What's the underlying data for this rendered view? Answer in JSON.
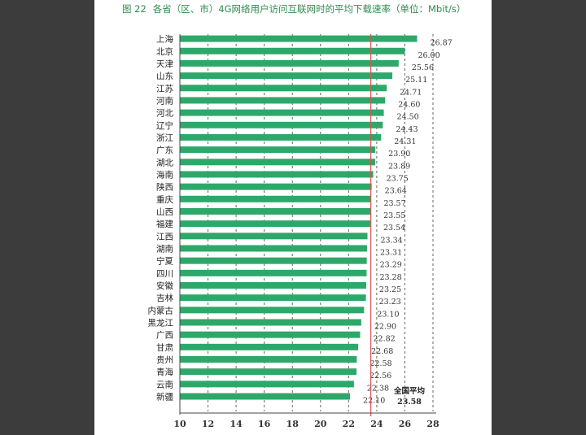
{
  "figure": {
    "number": "图 22",
    "caption": "各省（区、市）4G网络用户访问互联网时的平均下载速率（单位：Mbit/s）"
  },
  "average_note": {
    "label": "全国平均",
    "value": "23.58"
  },
  "colors": {
    "bar": "#2ea86a",
    "average_line": "#d9534f",
    "title": "#2e8b4e"
  },
  "chart_data": {
    "type": "bar",
    "orientation": "horizontal",
    "categories": [
      "上海",
      "北京",
      "天津",
      "山东",
      "江苏",
      "河南",
      "河北",
      "辽宁",
      "浙江",
      "广东",
      "湖北",
      "海南",
      "陕西",
      "重庆",
      "山西",
      "福建",
      "江西",
      "湖南",
      "宁夏",
      "四川",
      "安徽",
      "吉林",
      "内蒙古",
      "黑龙江",
      "广西",
      "甘肃",
      "贵州",
      "青海",
      "云南",
      "新疆"
    ],
    "values": [
      26.87,
      26.0,
      25.56,
      25.11,
      24.71,
      24.6,
      24.5,
      24.43,
      24.31,
      23.9,
      23.89,
      23.75,
      23.64,
      23.57,
      23.55,
      23.54,
      23.34,
      23.31,
      23.29,
      23.28,
      23.25,
      23.23,
      23.1,
      22.9,
      22.82,
      22.68,
      22.58,
      22.56,
      22.38,
      22.1
    ],
    "value_labels": [
      "26.87",
      "26.00",
      "25.56",
      "25.11",
      "24.71",
      "24.60",
      "24.50",
      "24.43",
      "24.31",
      "23.90",
      "23.89",
      "23.75",
      "23.64",
      "23.57",
      "23.55",
      "23.54",
      "23.34",
      "23.31",
      "23.29",
      "23.28",
      "23.25",
      "23.23",
      "23.10",
      "22.90",
      "22.82",
      "22.68",
      "22.58",
      "22.56",
      "22.38",
      "22.10"
    ],
    "xlim": [
      10,
      28
    ],
    "xticks": [
      10,
      12,
      14,
      16,
      18,
      20,
      22,
      24,
      26,
      28
    ],
    "reference_line": {
      "value": 23.58
    },
    "grid": "vertical dashed"
  }
}
